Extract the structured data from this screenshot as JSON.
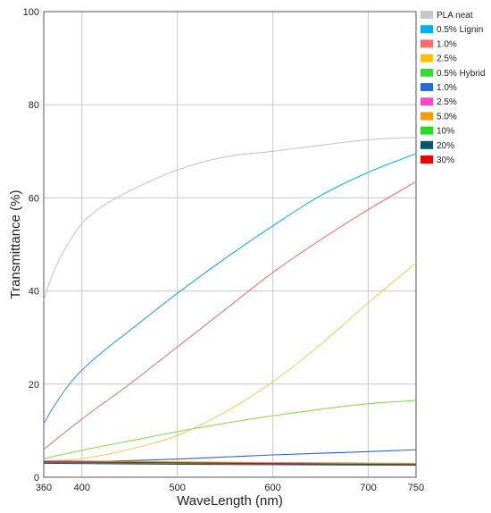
{
  "chart_data": {
    "type": "line",
    "title": "",
    "xlabel": "WaveLength (nm)",
    "ylabel": "Transmittance (%)",
    "xlim": [
      360,
      750
    ],
    "ylim": [
      0,
      100
    ],
    "x_ticks": [
      360,
      400,
      500,
      600,
      700,
      750
    ],
    "x_grid": [
      400,
      500,
      600,
      700,
      750
    ],
    "y_ticks": [
      0,
      20,
      40,
      60,
      80,
      100
    ],
    "grid": true,
    "legend_position": "right",
    "series": [
      {
        "name": "PLA neat",
        "color": "#c8c8c8",
        "line_colors": [
          "#c8c8c8"
        ],
        "x": [
          360,
          370,
          385,
          400,
          420,
          450,
          500,
          550,
          600,
          650,
          700,
          750
        ],
        "y": [
          38,
          44,
          50,
          54.5,
          58,
          61.5,
          66,
          68.8,
          70,
          71.3,
          72.5,
          73
        ]
      },
      {
        "name": "0.5% Lignin",
        "color": "#00b0f0",
        "line_colors": [
          "#4a90e2",
          "#00c0e0"
        ],
        "x": [
          360,
          370,
          385,
          400,
          425,
          450,
          500,
          550,
          600,
          650,
          700,
          750
        ],
        "y": [
          11.5,
          15,
          19.5,
          23,
          27.5,
          31.5,
          39.5,
          47,
          54,
          60.5,
          65.5,
          69.5
        ]
      },
      {
        "name": "1.0%",
        "color": "#ff6b6b",
        "line_colors": [
          "#c0887a",
          "#ff6b6b"
        ],
        "x": [
          360,
          400,
          450,
          500,
          550,
          600,
          650,
          700,
          750
        ],
        "y": [
          6,
          12.5,
          20,
          28,
          36,
          44,
          51,
          57.5,
          63.5
        ]
      },
      {
        "name": "2.5%",
        "color": "#ffc000",
        "line_colors": [
          "#e8d060"
        ],
        "x": [
          360,
          400,
          450,
          500,
          550,
          600,
          650,
          700,
          750
        ],
        "y": [
          3.5,
          4,
          6,
          9,
          14,
          20.5,
          28.5,
          37.5,
          46
        ]
      },
      {
        "name": "0.5% Hybrid",
        "color": "#33dd33",
        "line_colors": [
          "#88dd55"
        ],
        "x": [
          360,
          400,
          450,
          500,
          550,
          600,
          650,
          700,
          750
        ],
        "y": [
          4,
          5.8,
          7.8,
          9.8,
          11.6,
          13.2,
          14.6,
          15.8,
          16.5
        ]
      },
      {
        "name": "1.0%",
        "color": "#1e6fdc",
        "line_colors": [
          "#2a62d8"
        ],
        "x": [
          360,
          400,
          500,
          600,
          700,
          750
        ],
        "y": [
          3,
          3.3,
          3.9,
          4.8,
          5.5,
          5.9
        ]
      },
      {
        "name": "2.5%",
        "color": "#ff44cc",
        "line_colors": [
          "#cc66aa"
        ],
        "x": [
          360,
          500,
          750
        ],
        "y": [
          3.4,
          3.2,
          2.9
        ]
      },
      {
        "name": "5.0%",
        "color": "#ff9900",
        "line_colors": [
          "#d4a040"
        ],
        "x": [
          360,
          500,
          750
        ],
        "y": [
          3.6,
          3.3,
          3.0
        ]
      },
      {
        "name": "10%",
        "color": "#22dd22",
        "line_colors": [
          "#66aa44"
        ],
        "x": [
          360,
          500,
          750
        ],
        "y": [
          3.2,
          3.0,
          2.8
        ]
      },
      {
        "name": "20%",
        "color": "#0b5470",
        "line_colors": [
          "#1f4f66"
        ],
        "x": [
          360,
          500,
          750
        ],
        "y": [
          3.0,
          2.8,
          2.6
        ]
      },
      {
        "name": "30%",
        "color": "#ee0000",
        "line_colors": [
          "#8b2a2a"
        ],
        "x": [
          360,
          500,
          750
        ],
        "y": [
          3.3,
          3.1,
          2.7
        ]
      }
    ]
  }
}
